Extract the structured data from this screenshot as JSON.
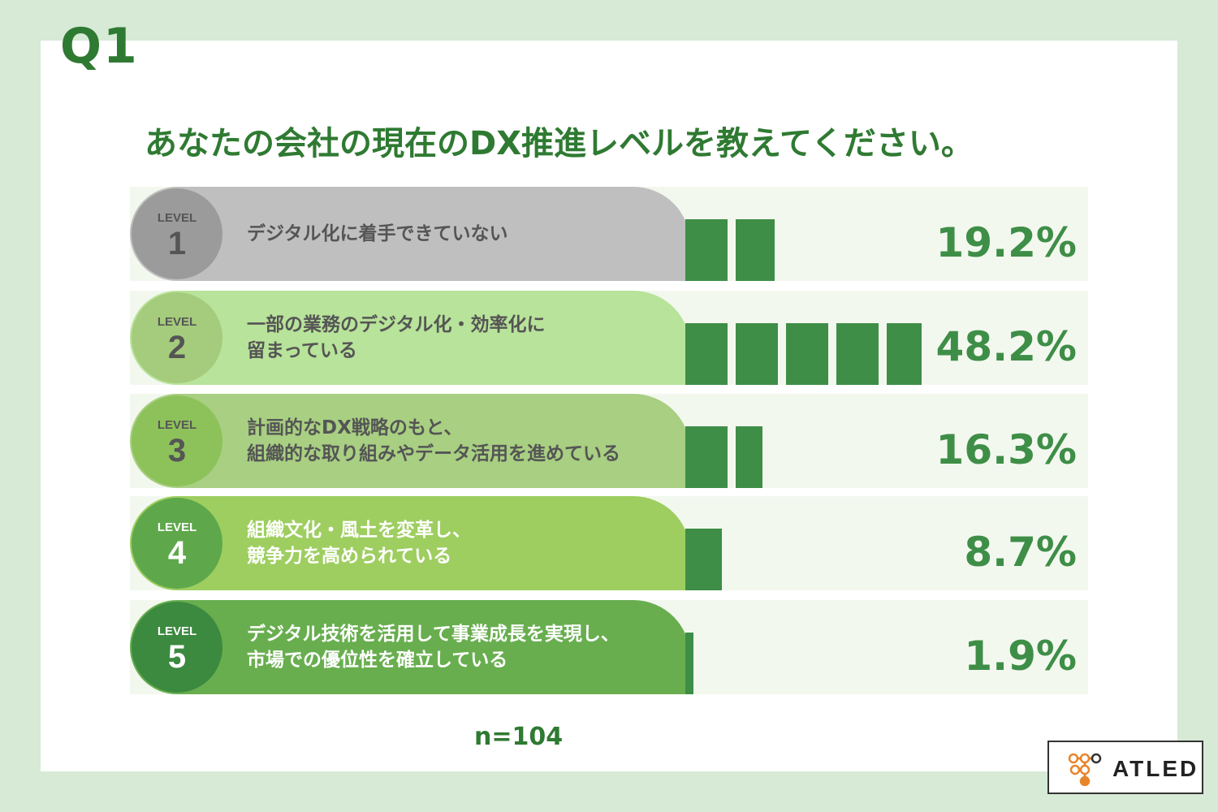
{
  "header": {
    "question_number": "Q1",
    "question": "あなたの会社の現在のDX推進レベルを教えてください。"
  },
  "chart_data": {
    "type": "bar",
    "level_word": "LEVEL",
    "categories": [
      "デジタル化に着手できていない",
      "一部の業務のデジタル化・効率化に\n留まっている",
      "計画的なDX戦略のもと、\n組織的な取り組みやデータ活用を進めている",
      "組織文化・風土を変革し、\n競争力を高められている",
      "デジタル技術を活用して事業成長を実現し、\n市場での優位性を確立している"
    ],
    "levels": [
      "1",
      "2",
      "3",
      "4",
      "5"
    ],
    "values": [
      19.2,
      48.2,
      16.3,
      8.7,
      1.9
    ],
    "value_labels": [
      "19.2%",
      "48.2%",
      "16.3%",
      "8.7%",
      "1.9%"
    ],
    "unit": "%",
    "colors": {
      "pill": [
        "#bfbfbf",
        "#b8e39a",
        "#a8cf82",
        "#9ece60",
        "#68ae4f"
      ],
      "circle": [
        "#9b9b9b",
        "#a5cb7c",
        "#8dc25a",
        "#5ea84b",
        "#3b8a3f"
      ],
      "label_text": [
        "#555555",
        "#555555",
        "#555555",
        "#ffffff",
        "#ffffff"
      ],
      "circle_text": [
        "#555555",
        "#555555",
        "#555555",
        "#ffffff",
        "#ffffff"
      ],
      "bar": "#3e8e47",
      "track": "#f3f8ef"
    }
  },
  "footer": {
    "sample_size": "n=104"
  },
  "logo": {
    "text": "ATLED"
  }
}
